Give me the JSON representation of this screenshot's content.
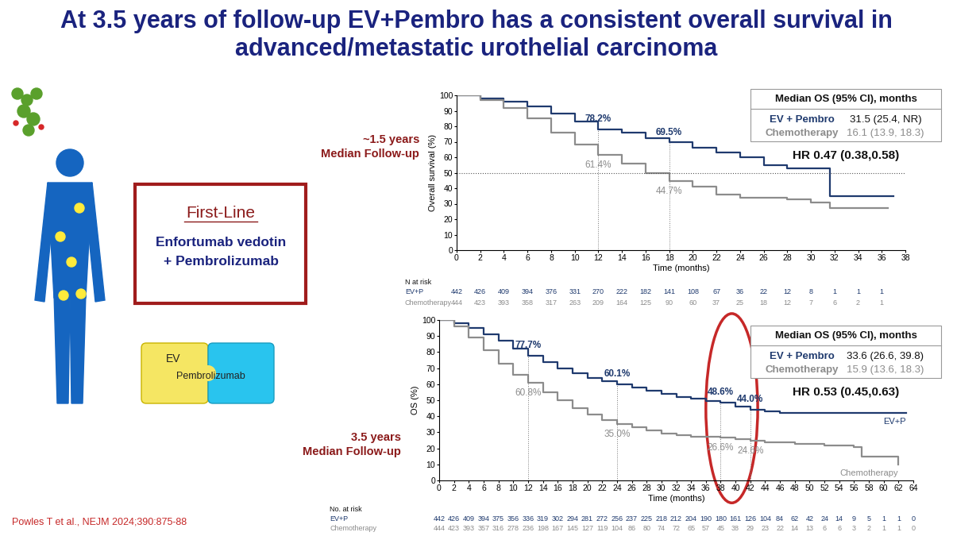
{
  "slide": {
    "title": "At 3.5 years of follow-up EV+Pembro has a consistent overall survival in advanced/metastatic urothelial carcinoma",
    "first_line_box": {
      "heading": "First-Line",
      "regimen": [
        "Enfortumab vedotin",
        "+ Pembrolizumab"
      ]
    },
    "puzzle": [
      "EV",
      "Pembrolizumab"
    ],
    "citation": "Powles T et al., NEJM 2024;390:875-88"
  },
  "chart_data": [
    {
      "type": "line",
      "line_style": "steps",
      "grid": false,
      "follow_up": "~1.5 years\nMedian Follow-up",
      "xlabel": "Time (months)",
      "ylabel": "Overall survival (%)",
      "xlim": [
        0,
        38
      ],
      "ylim": [
        0,
        100
      ],
      "xticks": [
        0,
        2,
        4,
        6,
        8,
        10,
        12,
        14,
        16,
        18,
        20,
        22,
        24,
        26,
        28,
        30,
        32,
        34,
        36,
        38
      ],
      "yticks": [
        0,
        10,
        20,
        30,
        40,
        50,
        60,
        70,
        80,
        90,
        100
      ],
      "median_line": 50,
      "series": [
        {
          "name": "EV+P",
          "color": "#1f3a6e",
          "x": [
            0,
            2,
            4,
            6,
            8,
            10,
            12,
            14,
            16,
            18,
            20,
            22,
            24,
            26,
            28,
            30,
            31.5,
            31.6,
            37
          ],
          "values": [
            100,
            98,
            96,
            93,
            88,
            83,
            78.2,
            76,
            72.5,
            69.5,
            66,
            63,
            60,
            55,
            53,
            53,
            53,
            35,
            35
          ],
          "at_risk": [
            442,
            426,
            409,
            394,
            376,
            331,
            270,
            222,
            182,
            141,
            108,
            67,
            36,
            22,
            12,
            8,
            1,
            1,
            1
          ]
        },
        {
          "name": "Chemotherapy",
          "color": "#8c8c8c",
          "x": [
            0,
            2,
            4,
            6,
            8,
            10,
            12,
            14,
            16,
            18,
            20,
            22,
            24,
            26,
            28,
            30,
            31.5,
            31.6,
            36.5
          ],
          "values": [
            100,
            97,
            92,
            85,
            76,
            68,
            61.4,
            56,
            50,
            44.7,
            41,
            36,
            34,
            34,
            33,
            31,
            31,
            27,
            27
          ],
          "at_risk": [
            444,
            423,
            393,
            358,
            317,
            263,
            209,
            164,
            125,
            90,
            60,
            37,
            25,
            18,
            12,
            7,
            6,
            2,
            1
          ]
        }
      ],
      "annotations": [
        {
          "series": 0,
          "x": 12,
          "y": 78.2,
          "label": "78.2%"
        },
        {
          "series": 0,
          "x": 18,
          "y": 69.5,
          "label": "69.5%"
        },
        {
          "series": 1,
          "x": 12,
          "y": 61.4,
          "label": "61.4%"
        },
        {
          "series": 1,
          "x": 18,
          "y": 44.7,
          "label": "44.7%"
        }
      ],
      "at_risk_title": "N at risk",
      "at_risk_x": [
        0,
        2,
        4,
        6,
        8,
        10,
        12,
        14,
        16,
        18,
        20,
        22,
        24,
        26,
        28,
        30,
        32,
        34,
        36
      ],
      "median_table": {
        "header": "Median OS (95% CI), months",
        "rows": [
          {
            "name": "EV + Pembro",
            "value": "31.5 (25.4, NR)"
          },
          {
            "name": "Chemotherapy",
            "value": "16.1 (13.9, 18.3)"
          }
        ],
        "hr": "HR 0.47 (0.38,0.58)"
      }
    },
    {
      "type": "line",
      "line_style": "steps",
      "grid": false,
      "follow_up": "3.5 years\nMedian Follow-up",
      "xlabel": "Time (months)",
      "ylabel": "OS (%)",
      "xlim": [
        0,
        64
      ],
      "ylim": [
        0,
        100
      ],
      "xticks": [
        0,
        2,
        4,
        6,
        8,
        10,
        12,
        14,
        16,
        18,
        20,
        22,
        24,
        26,
        28,
        30,
        32,
        34,
        36,
        38,
        40,
        42,
        44,
        46,
        48,
        50,
        52,
        54,
        56,
        58,
        60,
        62,
        64
      ],
      "yticks": [
        0,
        10,
        20,
        30,
        40,
        50,
        60,
        70,
        80,
        90,
        100
      ],
      "series": [
        {
          "name": "EV+P",
          "color": "#1f3a6e",
          "x": [
            0,
            2,
            4,
            6,
            8,
            10,
            12,
            14,
            16,
            18,
            20,
            22,
            24,
            26,
            28,
            30,
            32,
            34,
            36,
            38,
            40,
            42,
            44,
            46,
            48,
            63
          ],
          "values": [
            100,
            98,
            95,
            91,
            87,
            82,
            77.7,
            74,
            70,
            67,
            64,
            62,
            60.1,
            58,
            56,
            54,
            52,
            51,
            49.5,
            48.6,
            46,
            44,
            43,
            42,
            42,
            42
          ],
          "at_risk": [
            442,
            426,
            409,
            394,
            375,
            356,
            336,
            319,
            302,
            294,
            281,
            272,
            256,
            237,
            225,
            218,
            212,
            204,
            190,
            180,
            161,
            126,
            104,
            84,
            62,
            42,
            24,
            14,
            9,
            5,
            1,
            1,
            0
          ]
        },
        {
          "name": "Chemotherapy",
          "color": "#8c8c8c",
          "x": [
            0,
            2,
            4,
            6,
            8,
            10,
            12,
            14,
            16,
            18,
            20,
            22,
            24,
            26,
            28,
            30,
            32,
            34,
            36,
            38,
            40,
            42,
            44,
            48,
            52,
            56,
            57,
            61,
            62
          ],
          "values": [
            100,
            96,
            89,
            81,
            73,
            66,
            60.8,
            55,
            50,
            45,
            41,
            37.5,
            35,
            33,
            31,
            29,
            28,
            27,
            27,
            26.6,
            25.5,
            24.6,
            24,
            23,
            22,
            21,
            15,
            15,
            10
          ],
          "at_risk": [
            444,
            423,
            393,
            357,
            316,
            278,
            236,
            198,
            167,
            145,
            127,
            119,
            104,
            86,
            80,
            74,
            72,
            65,
            57,
            45,
            38,
            29,
            23,
            22,
            14,
            13,
            6,
            6,
            3,
            2,
            1,
            1,
            0
          ]
        }
      ],
      "annotations": [
        {
          "series": 0,
          "x": 12,
          "y": 77.7,
          "label": "77.7%"
        },
        {
          "series": 0,
          "x": 24,
          "y": 60.1,
          "label": "60.1%"
        },
        {
          "series": 0,
          "x": 38,
          "y": 48.6,
          "label": "48.6%"
        },
        {
          "series": 0,
          "x": 42,
          "y": 44.0,
          "label": "44.0%"
        },
        {
          "series": 1,
          "x": 12,
          "y": 60.8,
          "label": "60.8%"
        },
        {
          "series": 1,
          "x": 24,
          "y": 35.0,
          "label": "35.0%"
        },
        {
          "series": 1,
          "x": 38,
          "y": 26.6,
          "label": "26.6%"
        },
        {
          "series": 1,
          "x": 42,
          "y": 24.6,
          "label": "24.6%"
        }
      ],
      "end_labels": [
        "EV+P",
        "Chemotherapy"
      ],
      "at_risk_title": "No. at risk",
      "at_risk_x": [
        0,
        2,
        4,
        6,
        8,
        10,
        12,
        14,
        16,
        18,
        20,
        22,
        24,
        26,
        28,
        30,
        32,
        34,
        36,
        38,
        40,
        42,
        44,
        46,
        48,
        50,
        52,
        54,
        56,
        58,
        60,
        62,
        64
      ],
      "median_table": {
        "header": "Median OS (95% CI), months",
        "rows": [
          {
            "name": "EV + Pembro",
            "value": "33.6 (26.6, 39.8)"
          },
          {
            "name": "Chemotherapy",
            "value": "15.9 (13.6, 18.3)"
          }
        ],
        "hr": "HR 0.53 (0.45,0.63)"
      }
    }
  ]
}
